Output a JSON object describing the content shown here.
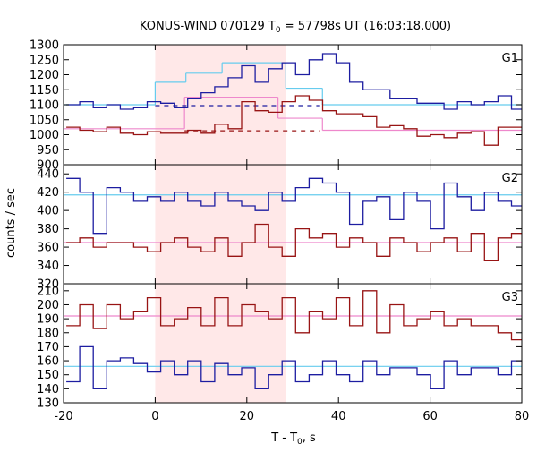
{
  "chart_data": {
    "type": "line",
    "title_main": "KONUS-WIND 070129 T",
    "title_sub": "0",
    "title_rest": " = 57798s UT (16:03:18.000)",
    "ylabel": "counts / sec",
    "xlabel_main": "T - T",
    "xlabel_sub": "0",
    "xlabel_rest": ", s",
    "xlim": [
      -20,
      80
    ],
    "xticks": [
      "-20",
      "0",
      "20",
      "40",
      "60",
      "80"
    ],
    "xtick_values": [
      -20,
      0,
      20,
      40,
      60,
      80
    ],
    "shaded_interval": [
      0,
      28.5
    ],
    "colors": {
      "shade": "#ffe8e8",
      "blue": "#1d1da1",
      "darkred": "#981414",
      "cyan": "#66ccee",
      "pink": "#ee88cc"
    },
    "step_width": 2.944,
    "x_start": -19.4,
    "panels": [
      {
        "label": "G1",
        "ylim": [
          900,
          1300
        ],
        "yticks": [
          "900",
          "950",
          "1000",
          "1050",
          "1100",
          "1150",
          "1200",
          "1250",
          "1300"
        ],
        "ytick_values": [
          900,
          950,
          1000,
          1050,
          1100,
          1150,
          1200,
          1250,
          1300
        ],
        "series": [
          {
            "color": "blue",
            "values": [
              1100,
              1110,
              1090,
              1100,
              1085,
              1090,
              1110,
              1105,
              1090,
              1120,
              1140,
              1160,
              1190,
              1230,
              1175,
              1220,
              1240,
              1200,
              1250,
              1270,
              1240,
              1175,
              1150,
              1150,
              1120,
              1120,
              1105,
              1105,
              1085,
              1110,
              1100,
              1110,
              1130,
              1085,
              1120,
              1090,
              1110,
              1100,
              1090,
              1110,
              1080,
              1110,
              1085,
              1120,
              1125,
              1110,
              1090,
              1105,
              1080,
              1100,
              1090,
              1120
            ]
          },
          {
            "color": "darkred",
            "values": [
              1025,
              1015,
              1010,
              1025,
              1005,
              1000,
              1010,
              1005,
              1005,
              1015,
              1005,
              1035,
              1020,
              1110,
              1080,
              1075,
              1110,
              1130,
              1115,
              1080,
              1070,
              1070,
              1060,
              1025,
              1030,
              1020,
              995,
              1000,
              990,
              1005,
              1010,
              965,
              1025,
              1025,
              1030,
              1015,
              990,
              1005,
              995,
              1020,
              1015,
              995,
              1025,
              1025,
              1020,
              1000,
              1020,
              1005,
              1010,
              1015,
              985,
              995
            ]
          }
        ],
        "fits": [
          {
            "color": "cyan",
            "segments": [
              [
                -20,
                0,
                1100
              ],
              [
                0,
                6.7,
                1175
              ],
              [
                6.7,
                14.6,
                1205
              ],
              [
                14.6,
                21,
                1240
              ],
              [
                21,
                28.5,
                1240
              ],
              [
                28.5,
                36.5,
                1155
              ],
              [
                36.5,
                80,
                1100
              ]
            ]
          },
          {
            "color": "pink",
            "segments": [
              [
                -20,
                6.4,
                1020
              ],
              [
                6.4,
                26.8,
                1125
              ],
              [
                26.8,
                36.5,
                1055
              ],
              [
                36.5,
                80,
                1015
              ]
            ]
          }
        ],
        "dashed": [
          {
            "color": "blue",
            "x": [
              0,
              35.8
            ],
            "y": 1097
          },
          {
            "color": "darkred",
            "x": [
              6.4,
              35.8
            ],
            "y": 1013
          }
        ]
      },
      {
        "label": "G2",
        "ylim": [
          320,
          450
        ],
        "yticks": [
          "320",
          "340",
          "360",
          "380",
          "400",
          "420",
          "440"
        ],
        "ytick_values": [
          320,
          340,
          360,
          380,
          400,
          420,
          440
        ],
        "series": [
          {
            "color": "blue",
            "values": [
              435,
              420,
              375,
              425,
              420,
              410,
              415,
              410,
              420,
              410,
              405,
              420,
              410,
              405,
              400,
              420,
              410,
              425,
              435,
              430,
              420,
              385,
              410,
              415,
              390,
              420,
              410,
              380,
              430,
              415,
              400,
              420,
              410,
              405,
              420,
              390,
              420,
              410,
              430,
              415,
              395,
              420,
              410,
              405,
              420,
              410,
              410,
              420,
              410,
              440,
              400,
              425
            ]
          },
          {
            "color": "darkred",
            "values": [
              365,
              370,
              360,
              365,
              365,
              360,
              355,
              365,
              370,
              360,
              355,
              370,
              350,
              365,
              385,
              360,
              350,
              380,
              370,
              375,
              360,
              370,
              365,
              350,
              370,
              365,
              355,
              365,
              370,
              355,
              375,
              345,
              370,
              375,
              365,
              350,
              360,
              370,
              365,
              355,
              360,
              350,
              375,
              365,
              370,
              360,
              355,
              365,
              350,
              360,
              370,
              355
            ]
          }
        ],
        "fits": [
          {
            "color": "cyan",
            "segments": [
              [
                -20,
                80,
                417
              ]
            ]
          },
          {
            "color": "pink",
            "segments": [
              [
                -20,
                80,
                365
              ]
            ]
          }
        ],
        "dashed": []
      },
      {
        "label": "G3",
        "ylim": [
          130,
          215
        ],
        "yticks": [
          "130",
          "140",
          "150",
          "160",
          "170",
          "180",
          "190",
          "200",
          "210"
        ],
        "ytick_values": [
          130,
          140,
          150,
          160,
          170,
          180,
          190,
          200,
          210
        ],
        "series": [
          {
            "color": "darkred",
            "values": [
              185,
              200,
              183,
              200,
              190,
              195,
              205,
              185,
              190,
              198,
              185,
              205,
              185,
              200,
              195,
              190,
              205,
              180,
              195,
              190,
              205,
              185,
              210,
              180,
              200,
              185,
              190,
              195,
              185,
              190,
              185,
              185,
              180,
              175,
              190,
              180,
              190,
              185,
              195,
              200,
              185,
              190,
              200,
              180,
              190,
              195,
              185,
              195,
              200,
              190,
              185,
              190
            ]
          },
          {
            "color": "blue",
            "values": [
              145,
              170,
              140,
              160,
              162,
              158,
              152,
              160,
              150,
              160,
              145,
              158,
              150,
              155,
              140,
              150,
              160,
              145,
              150,
              160,
              150,
              145,
              160,
              150,
              155,
              155,
              150,
              140,
              160,
              150,
              155,
              155,
              150,
              160,
              155,
              148,
              150,
              150,
              140,
              150,
              155,
              145,
              158,
              150,
              155,
              145,
              140,
              150,
              155,
              150,
              145,
              162
            ]
          }
        ],
        "fits": [
          {
            "color": "pink",
            "segments": [
              [
                -20,
                80,
                192
              ]
            ]
          },
          {
            "color": "cyan",
            "segments": [
              [
                -20,
                80,
                156
              ]
            ]
          }
        ],
        "dashed": []
      }
    ]
  }
}
